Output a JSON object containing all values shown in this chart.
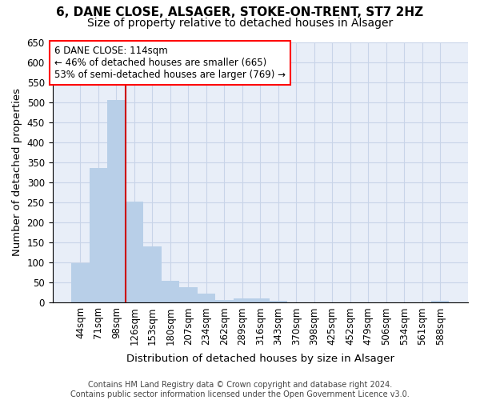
{
  "title_line1": "6, DANE CLOSE, ALSAGER, STOKE-ON-TRENT, ST7 2HZ",
  "title_line2": "Size of property relative to detached houses in Alsager",
  "xlabel": "Distribution of detached houses by size in Alsager",
  "ylabel": "Number of detached properties",
  "categories": [
    "44sqm",
    "71sqm",
    "98sqm",
    "126sqm",
    "153sqm",
    "180sqm",
    "207sqm",
    "234sqm",
    "262sqm",
    "289sqm",
    "316sqm",
    "343sqm",
    "370sqm",
    "398sqm",
    "425sqm",
    "452sqm",
    "479sqm",
    "506sqm",
    "534sqm",
    "561sqm",
    "588sqm"
  ],
  "values": [
    98,
    335,
    505,
    253,
    140,
    55,
    38,
    22,
    6,
    10,
    10,
    4,
    1,
    1,
    1,
    0,
    0,
    0,
    0,
    0,
    5
  ],
  "bar_color": "#b8cfe8",
  "grid_color": "#c8d4e8",
  "background_color": "#e8eef8",
  "vline_position": 2.5,
  "vline_color": "#cc0000",
  "annotation_text": "6 DANE CLOSE: 114sqm\n← 46% of detached houses are smaller (665)\n53% of semi-detached houses are larger (769) →",
  "ylim_max": 650,
  "ytick_step": 50,
  "footer_line1": "Contains HM Land Registry data © Crown copyright and database right 2024.",
  "footer_line2": "Contains public sector information licensed under the Open Government Licence v3.0.",
  "title_fontsize": 11,
  "subtitle_fontsize": 10,
  "axis_label_fontsize": 9.5,
  "tick_fontsize": 8.5,
  "annotation_fontsize": 8.5,
  "footer_fontsize": 7
}
